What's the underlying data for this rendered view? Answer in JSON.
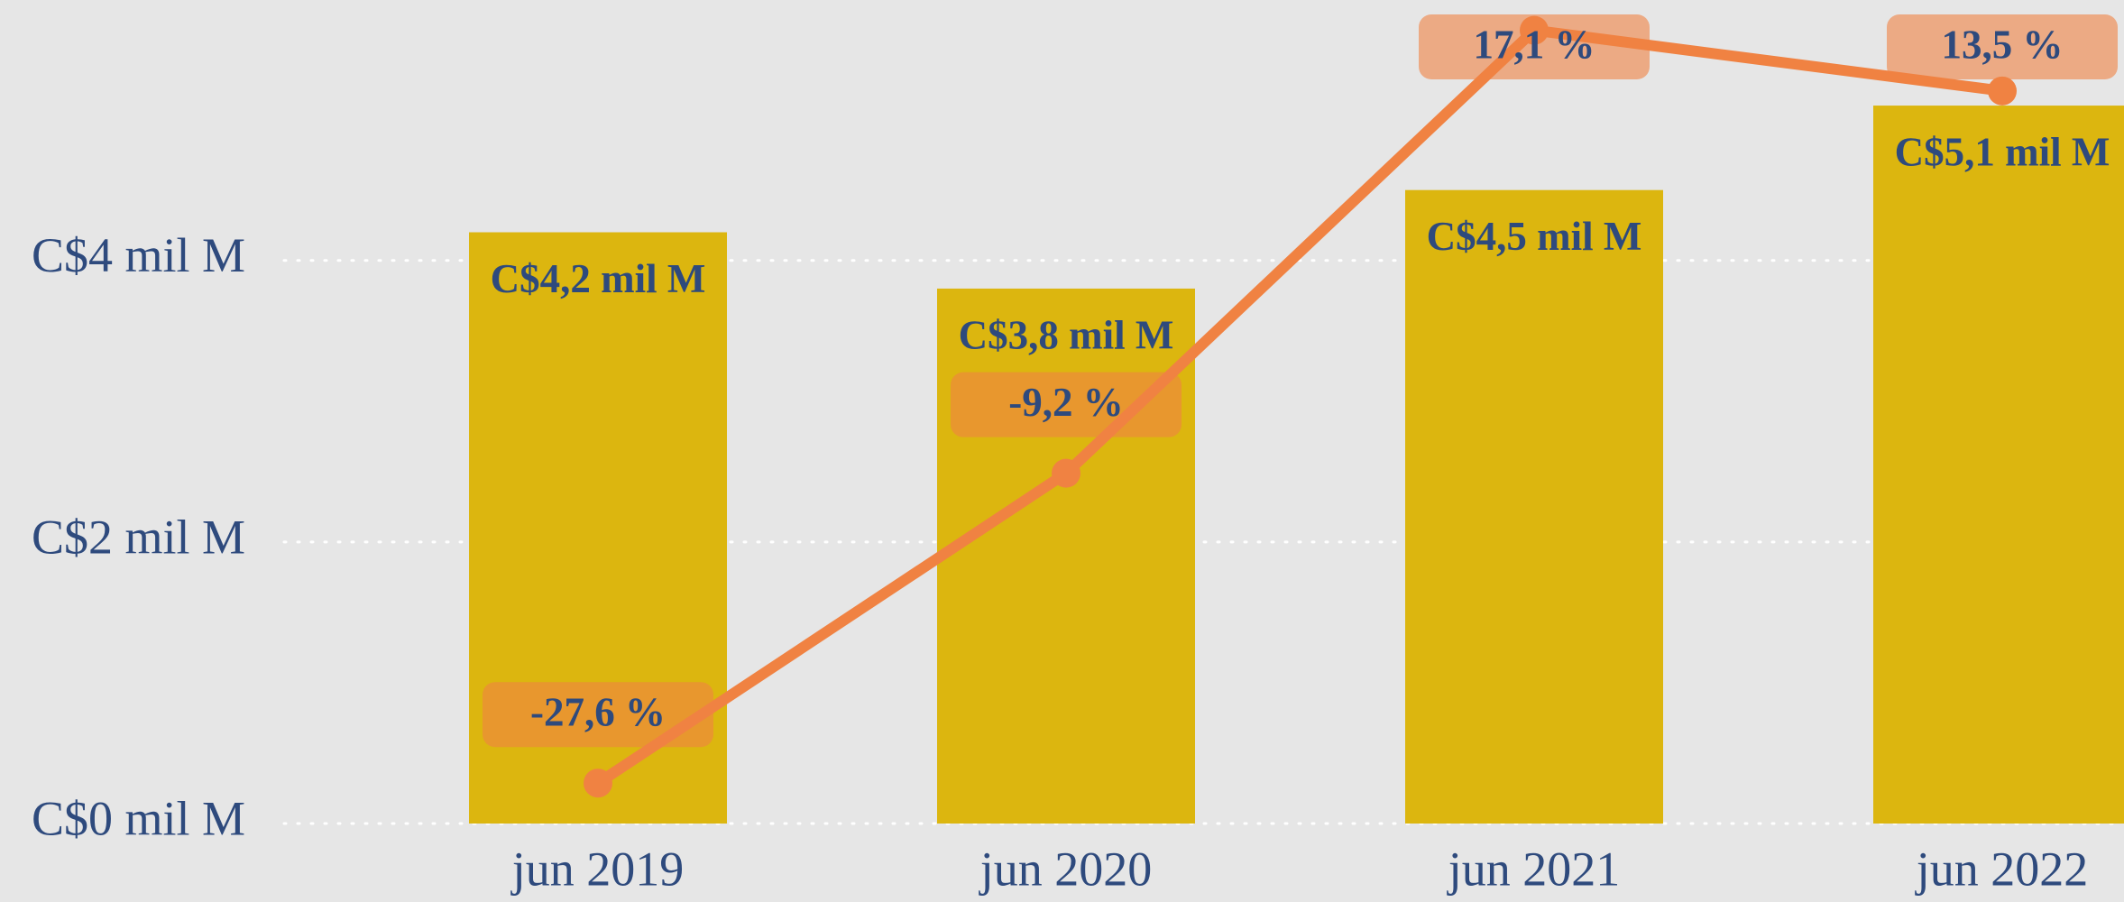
{
  "chart_data": {
    "type": "bar",
    "categories": [
      "jun 2019",
      "jun 2020",
      "jun 2021",
      "jun 2022"
    ],
    "series": [
      {
        "type": "bar",
        "color": "#dcb60f",
        "values": [
          4.2,
          3.8,
          4.5,
          5.1
        ],
        "value_labels": [
          "C$4,2 mil M",
          "C$3,8 mil M",
          "C$4,5 mil M",
          "C$5,1 mil M"
        ]
      },
      {
        "type": "line",
        "axis": "y2",
        "color": "#f08242",
        "values": [
          -27.6,
          -9.2,
          17.1,
          13.5
        ],
        "value_labels": [
          "-27,6 %",
          "-9,2 %",
          "17,1 %",
          "13,5 %"
        ]
      }
    ],
    "ylim": [
      0,
      5.85
    ],
    "yticks": [
      {
        "value": 0,
        "label": "C$0 mil M"
      },
      {
        "value": 2,
        "label": "C$2 mil M"
      },
      {
        "value": 4,
        "label": "C$4 mil M"
      }
    ],
    "y2lim": [
      -30,
      18.9
    ],
    "grid": true
  }
}
